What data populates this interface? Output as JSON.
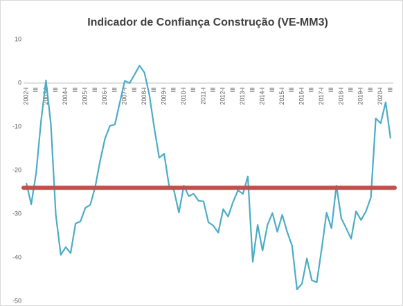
{
  "chart_data": {
    "type": "line",
    "title": "Indicador de Confiança Construção (VE-MM3)",
    "categories": [
      "2002-I",
      null,
      "III",
      null,
      "2003-I",
      null,
      "III",
      null,
      "2004-I",
      null,
      "III",
      null,
      "2005-I",
      null,
      "III",
      null,
      "2006-I",
      null,
      "III",
      null,
      "2007-I",
      null,
      "III",
      null,
      "2008-I",
      null,
      "III",
      null,
      "2009-I",
      null,
      "III",
      null,
      "2010-I",
      null,
      "III",
      null,
      "2011-I",
      null,
      "III",
      null,
      "2012-I",
      null,
      "III",
      null,
      "2013-I",
      null,
      "III",
      null,
      "2014-I",
      null,
      "III",
      null,
      "2015-I",
      null,
      "III",
      null,
      "2016-I",
      null,
      "III",
      null,
      "2017-I",
      null,
      "III",
      null,
      "2018-I",
      null,
      "III",
      null,
      "2019-I",
      null,
      "III",
      null,
      "2020-I",
      null,
      "III"
    ],
    "series": [
      {
        "name": "VE-MM3",
        "color": "#4bacc6",
        "values": [
          -22.9,
          -27.8,
          -20.6,
          -8.7,
          0.6,
          -9.5,
          -30.2,
          -39.4,
          -37.6,
          -39,
          -32.2,
          -31.7,
          -28.6,
          -27.9,
          -23.8,
          -17.8,
          -12.7,
          -9.8,
          -9.5,
          -4.4,
          0.5,
          0,
          2,
          4,
          2.4,
          -2.7,
          -10.3,
          -17.1,
          -16.2,
          -23.5,
          -24.6,
          -29.7,
          -23.5,
          -25.9,
          -25.4,
          -27,
          -27.1,
          -31.9,
          -32.7,
          -34.3,
          -28.9,
          -30.6,
          -27.3,
          -24.6,
          -25.4,
          -21.4,
          -41,
          -32.5,
          -38.4,
          -32.5,
          -29.8,
          -34.1,
          -30.2,
          -34.1,
          -37.3,
          -47.3,
          -46,
          -40.2,
          -45.2,
          -45.7,
          -38.1,
          -29.7,
          -33.3,
          -23.5,
          -31,
          -33.3,
          -35.7,
          -29.4,
          -31.4,
          -29.4,
          -26.2,
          -8.1,
          -9.2,
          -4.4,
          -12.7
        ]
      }
    ],
    "reference_line": {
      "value": -24,
      "color": "#c0504d"
    },
    "ylim": [
      -50,
      10
    ],
    "yticks": [
      10,
      0,
      -10,
      -20,
      -30,
      -40,
      -50
    ],
    "grid": false
  }
}
